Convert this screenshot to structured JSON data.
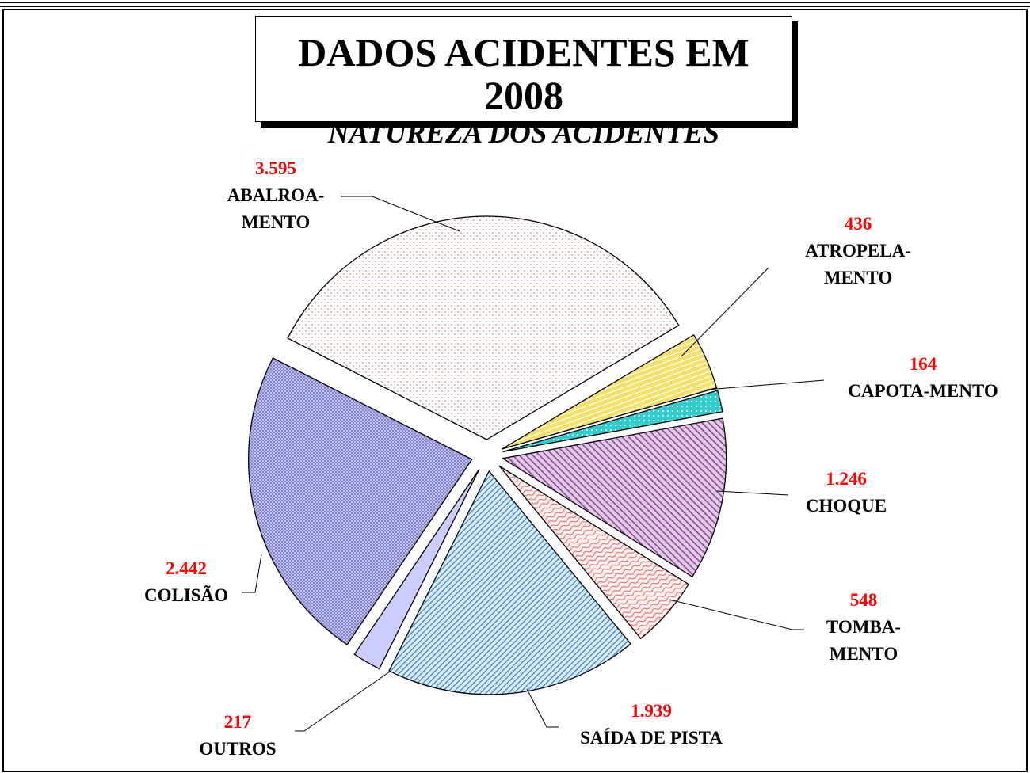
{
  "chart_data": {
    "type": "pie",
    "title": "DADOS ACIDENTES EM 2008",
    "subtitle": "NATUREZA DOS ACIDENTES",
    "categories": [
      "ABALROA-MENTO",
      "ATROPELA-MENTO",
      "CAPOTA-MENTO",
      "CHOQUE",
      "TOMBA-MENTO",
      "SAÍDA DE PISTA",
      "OUTROS",
      "COLISÃO"
    ],
    "values": [
      3595,
      436,
      164,
      1246,
      548,
      1939,
      217,
      2442
    ],
    "value_labels": [
      "3.595",
      "436",
      "164",
      "1.246",
      "548",
      "1.939",
      "217",
      "2.442"
    ],
    "colors": [
      "#ffffff",
      "#f3e06a",
      "#33cccc",
      "#e3c8ea",
      "#fff0f0",
      "#d6ecff",
      "#ccccff",
      "#c4c4f2"
    ],
    "value_label_color": "#ff0000"
  }
}
